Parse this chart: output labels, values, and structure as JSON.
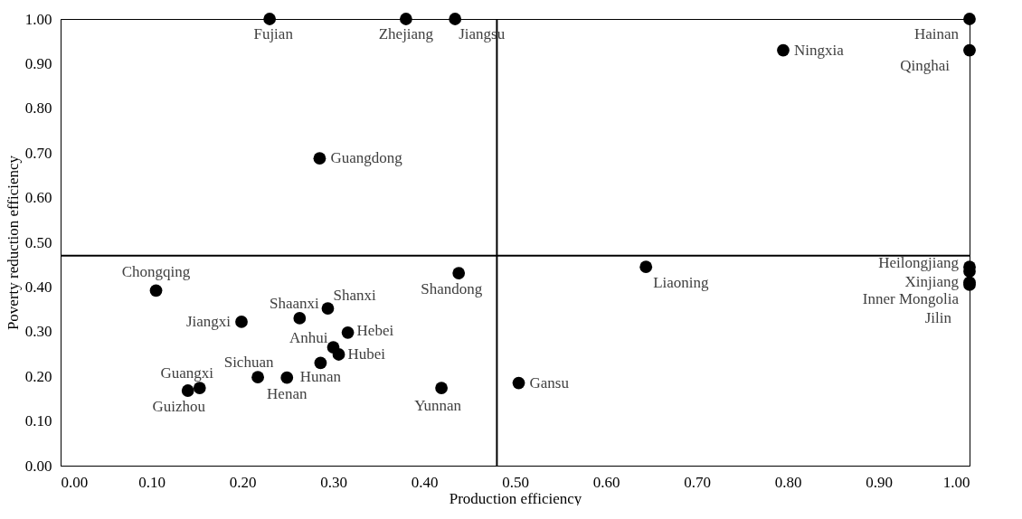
{
  "chart_data": {
    "type": "scatter",
    "xlabel": "Production efficiency",
    "ylabel": "Poverty reduction efficiency",
    "x": [
      0.23,
      0.38,
      0.434,
      0.285,
      0.795,
      1.0,
      1.0,
      0.105,
      0.199,
      0.263,
      0.294,
      0.316,
      0.3,
      0.306,
      0.286,
      0.217,
      0.249,
      0.153,
      0.14,
      0.438,
      0.419,
      0.644,
      0.504,
      1.0,
      1.0,
      1.0,
      1.0
    ],
    "values": [
      1.0,
      1.0,
      1.0,
      0.688,
      0.93,
      1.0,
      0.93,
      0.392,
      0.322,
      0.33,
      0.352,
      0.298,
      0.265,
      0.249,
      0.23,
      0.198,
      0.197,
      0.174,
      0.168,
      0.431,
      0.174,
      0.445,
      0.185,
      0.445,
      0.435,
      0.41,
      0.405
    ],
    "value_labels": [
      "Fujian",
      "Zhejiang",
      "Jiangsu",
      "Guangdong",
      "Ningxia",
      "Hainan",
      "Qinghai",
      "Chongqing",
      "Jiangxi",
      "Shaanxi",
      "Shanxi",
      "Hebei",
      "Anhui",
      "Hubei",
      "Hunan",
      "Sichuan",
      "Henan",
      "Guangxi",
      "Guizhou",
      "Shandong",
      "Yunnan",
      "Liaoning",
      "Gansu",
      "Heilongjiang",
      "Xinjiang",
      "Inner Mongolia",
      "Jilin"
    ],
    "color": "#000000",
    "marker": "circle",
    "grid": false,
    "xlim": [
      0,
      1
    ],
    "ylim": [
      0,
      1
    ],
    "xticks": [
      {
        "value": 0,
        "label": "0.00"
      },
      {
        "value": 0.1,
        "label": "0.10"
      },
      {
        "value": 0.2,
        "label": "0.20"
      },
      {
        "value": 0.3,
        "label": "0.30"
      },
      {
        "value": 0.4,
        "label": "0.40"
      },
      {
        "value": 0.5,
        "label": "0.50"
      },
      {
        "value": 0.6,
        "label": "0.60"
      },
      {
        "value": 0.7,
        "label": "0.70"
      },
      {
        "value": 0.8,
        "label": "0.80"
      },
      {
        "value": 0.9,
        "label": "0.90"
      },
      {
        "value": 1,
        "label": "1.00"
      }
    ],
    "yticks": [
      {
        "value": 0,
        "label": "0.00"
      },
      {
        "value": 0.1,
        "label": "0.10"
      },
      {
        "value": 0.2,
        "label": "0.20"
      },
      {
        "value": 0.3,
        "label": "0.30"
      },
      {
        "value": 0.4,
        "label": "0.40"
      },
      {
        "value": 0.5,
        "label": "0.50"
      },
      {
        "value": 0.6,
        "label": "0.60"
      },
      {
        "value": 0.7,
        "label": "0.70"
      },
      {
        "value": 0.8,
        "label": "0.80"
      },
      {
        "value": 0.9,
        "label": "0.90"
      },
      {
        "value": 1,
        "label": "1.00"
      }
    ],
    "ref_lines": [
      {
        "axis": "x",
        "value": 0.48,
        "color": "#000000"
      },
      {
        "axis": "y",
        "value": 0.47,
        "color": "#000000"
      }
    ]
  }
}
